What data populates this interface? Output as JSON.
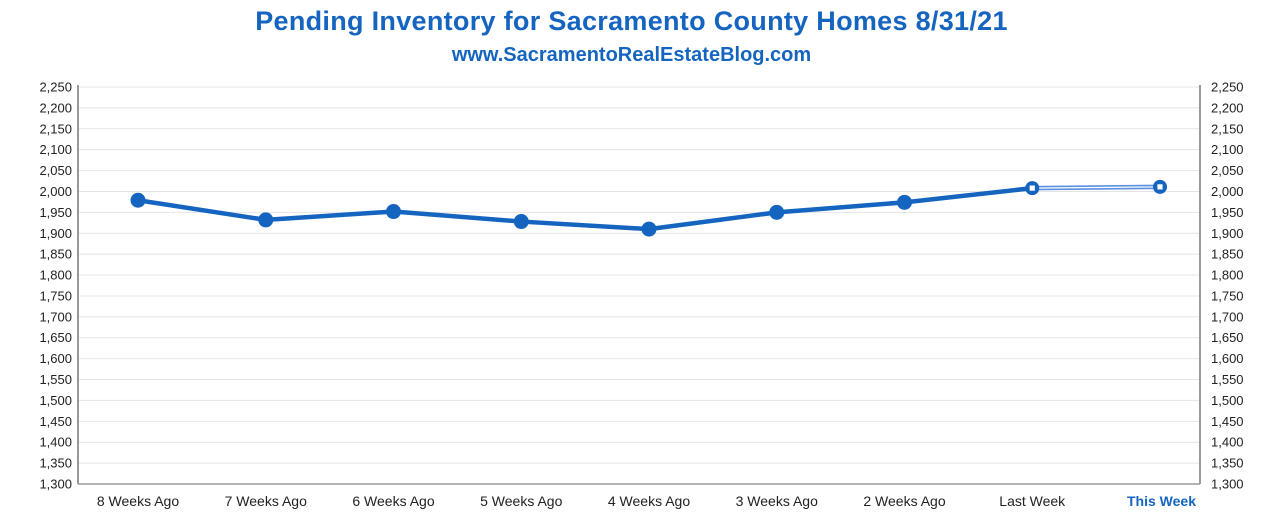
{
  "header": {
    "title": "Pending Inventory for Sacramento County Homes 8/31/21",
    "subtitle": "www.SacramentoRealEstateBlog.com"
  },
  "colors": {
    "title": "#1565c0",
    "line": "#1565c0",
    "line_light": "#5b8fe0",
    "grid": "#e4e4e4",
    "axis": "#9a9a9a"
  },
  "chart_data": {
    "type": "line",
    "title": "Pending Inventory for Sacramento County Homes 8/31/21",
    "subtitle": "www.SacramentoRealEstateBlog.com",
    "categories": [
      "8 Weeks Ago",
      "7 Weeks Ago",
      "6 Weeks Ago",
      "5 Weeks Ago",
      "4 Weeks Ago",
      "3 Weeks Ago",
      "2 Weeks Ago",
      "Last Week",
      "This Week"
    ],
    "highlight_category": "This Week",
    "series": [
      {
        "values": [
          1979,
          1932,
          1952,
          1928,
          1910,
          1950,
          1974,
          2008,
          2011
        ]
      }
    ],
    "ylim": [
      1300,
      2250
    ],
    "y_ticks": [
      "1,300",
      "1,350",
      "1,400",
      "1,450",
      "1,500",
      "1,550",
      "1,600",
      "1,650",
      "1,700",
      "1,750",
      "1,800",
      "1,850",
      "1,900",
      "1,950",
      "2,000",
      "2,050",
      "2,100",
      "2,150",
      "2,200",
      "2,250"
    ],
    "y_axis_both_sides": true,
    "grid": true,
    "legend": "none",
    "xlabel": "",
    "ylabel": ""
  }
}
